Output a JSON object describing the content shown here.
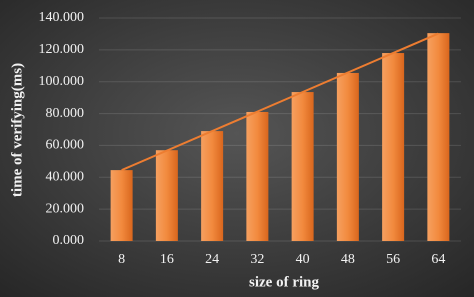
{
  "chart_data": {
    "type": "bar",
    "x_label": "size of ring",
    "y_label": "time of verifying(ms)",
    "categories": [
      "8",
      "16",
      "24",
      "32",
      "40",
      "48",
      "56",
      "64"
    ],
    "values": [
      44.5,
      57,
      69,
      81,
      93.5,
      105.5,
      118,
      130.5
    ],
    "color": "#ee7d31",
    "trendline": "linear",
    "trendline_color": "#ed7d31",
    "ylim": [
      0,
      140
    ],
    "yticks": [
      {
        "value": 0,
        "label": "0.000"
      },
      {
        "value": 20,
        "label": "20.000"
      },
      {
        "value": 40,
        "label": "40.000"
      },
      {
        "value": 60,
        "label": "60.000"
      },
      {
        "value": 80,
        "label": "80.000"
      },
      {
        "value": 100,
        "label": "100.000"
      },
      {
        "value": 120,
        "label": "120.000"
      },
      {
        "value": 140,
        "label": "140.000"
      }
    ],
    "grid": true
  }
}
